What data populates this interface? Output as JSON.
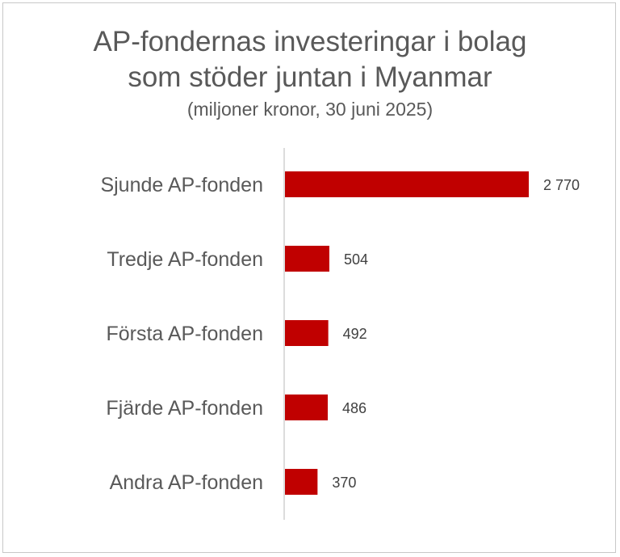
{
  "chart_data": {
    "type": "bar",
    "orientation": "horizontal",
    "title_lines": [
      "AP-fondernas investeringar i bolag",
      "som stöder juntan i Myanmar"
    ],
    "subtitle": "(miljoner kronor, 30 juni 2025)",
    "categories": [
      "Sjunde AP-fonden",
      "Tredje AP-fonden",
      "Första AP-fonden",
      "Fjärde AP-fonden",
      "Andra AP-fonden"
    ],
    "values": [
      2770,
      504,
      492,
      486,
      370
    ],
    "value_labels": [
      "2 770",
      "504",
      "492",
      "486",
      "370"
    ],
    "bar_color": "#c00000",
    "grid": false,
    "legend": "none"
  }
}
